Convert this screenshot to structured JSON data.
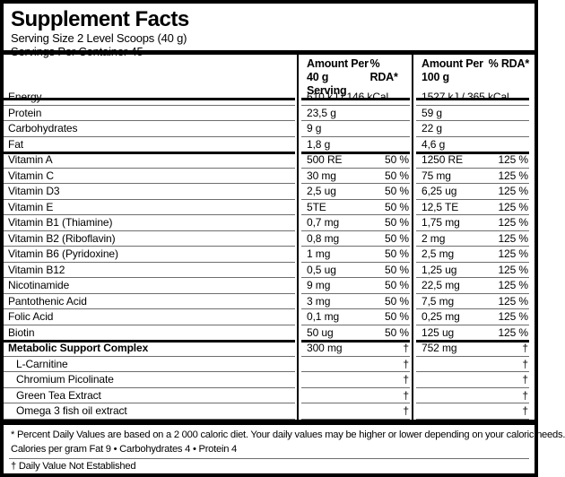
{
  "colors": {
    "border": "#000000",
    "thin_rule": "#6e6e6e",
    "text": "#000000",
    "background": "#ffffff"
  },
  "header": {
    "title": "Supplement Facts",
    "serving_size": "Serving Size 2 Level Scoops (40 g)",
    "servings_per_container": "Servings Per Container 45"
  },
  "table": {
    "columns": {
      "group1": {
        "line1": "Amount Per",
        "line2": "40 g Serving",
        "rda": "% RDA*"
      },
      "group2": {
        "line1": "Amount Per",
        "line2": "100 g",
        "rda": "% RDA*"
      }
    },
    "rows": [
      {
        "name": "Energy",
        "amount_40g": "610 kJ / 146 kCal",
        "rda_40g": "",
        "amount_100g": "1527 kJ / 365 kCal",
        "rda_100g": ""
      },
      {
        "name": "Protein",
        "amount_40g": "23,5 g",
        "rda_40g": "",
        "amount_100g": "59 g",
        "rda_100g": ""
      },
      {
        "name": "Carbohydrates",
        "amount_40g": "9 g",
        "rda_40g": "",
        "amount_100g": "22 g",
        "rda_100g": ""
      },
      {
        "name": "Fat",
        "amount_40g": "1,8 g",
        "rda_40g": "",
        "amount_100g": "4,6 g",
        "rda_100g": "",
        "thick_after": true
      },
      {
        "name": "Vitamin A",
        "amount_40g": "500 RE",
        "rda_40g": "50 %",
        "amount_100g": "1250 RE",
        "rda_100g": "125 %"
      },
      {
        "name": "Vitamin C",
        "amount_40g": "30 mg",
        "rda_40g": "50 %",
        "amount_100g": "75 mg",
        "rda_100g": "125 %"
      },
      {
        "name": "Vitamin D3",
        "amount_40g": "2,5 ug",
        "rda_40g": "50 %",
        "amount_100g": "6,25 ug",
        "rda_100g": "125 %"
      },
      {
        "name": "Vitamin E",
        "amount_40g": "5TE",
        "rda_40g": "50 %",
        "amount_100g": "12,5 TE",
        "rda_100g": "125 %"
      },
      {
        "name": "Vitamin B1 (Thiamine)",
        "amount_40g": "0,7 mg",
        "rda_40g": "50 %",
        "amount_100g": "1,75 mg",
        "rda_100g": "125 %"
      },
      {
        "name": "Vitamin B2 (Riboflavin)",
        "amount_40g": "0,8 mg",
        "rda_40g": "50 %",
        "amount_100g": "2 mg",
        "rda_100g": "125 %"
      },
      {
        "name": "Vitamin B6 (Pyridoxine)",
        "amount_40g": "1 mg",
        "rda_40g": "50 %",
        "amount_100g": "2,5 mg",
        "rda_100g": "125 %"
      },
      {
        "name": "Vitamin B12",
        "amount_40g": "0,5 ug",
        "rda_40g": "50 %",
        "amount_100g": "1,25 ug",
        "rda_100g": "125 %"
      },
      {
        "name": "Nicotinamide",
        "amount_40g": "9 mg",
        "rda_40g": "50 %",
        "amount_100g": "22,5 mg",
        "rda_100g": "125 %"
      },
      {
        "name": "Pantothenic Acid",
        "amount_40g": "3 mg",
        "rda_40g": "50 %",
        "amount_100g": "7,5 mg",
        "rda_100g": "125 %"
      },
      {
        "name": "Folic Acid",
        "amount_40g": "0,1 mg",
        "rda_40g": "50 %",
        "amount_100g": "0,25 mg",
        "rda_100g": "125 %"
      },
      {
        "name": "Biotin",
        "amount_40g": "50 ug",
        "rda_40g": "50 %",
        "amount_100g": "125 ug",
        "rda_100g": "125 %",
        "thick_after": true
      },
      {
        "name": "Metabolic Support Complex",
        "amount_40g": "300 mg",
        "rda_40g": "†",
        "amount_100g": "752 mg",
        "rda_100g": "†",
        "bold": true
      },
      {
        "name": "L-Carnitine",
        "amount_40g": "",
        "rda_40g": "†",
        "amount_100g": "",
        "rda_100g": "†",
        "indent": true
      },
      {
        "name": "Chromium Picolinate",
        "amount_40g": "",
        "rda_40g": "†",
        "amount_100g": "",
        "rda_100g": "†",
        "indent": true
      },
      {
        "name": "Green Tea Extract",
        "amount_40g": "",
        "rda_40g": "†",
        "amount_100g": "",
        "rda_100g": "†",
        "indent": true
      },
      {
        "name": "Omega 3 fish oil extract",
        "amount_40g": "",
        "rda_40g": "†",
        "amount_100g": "",
        "rda_100g": "†",
        "indent": true
      }
    ]
  },
  "footnotes": {
    "daily_values": "* Percent Daily Values are based on a 2 000 caloric diet. Your daily values may be higher or lower depending on your caloric needs.",
    "calories_per_gram": "Calories per gram Fat 9 • Carbohydrates 4 • Protein 4",
    "not_established": "† Daily Value Not Established"
  }
}
